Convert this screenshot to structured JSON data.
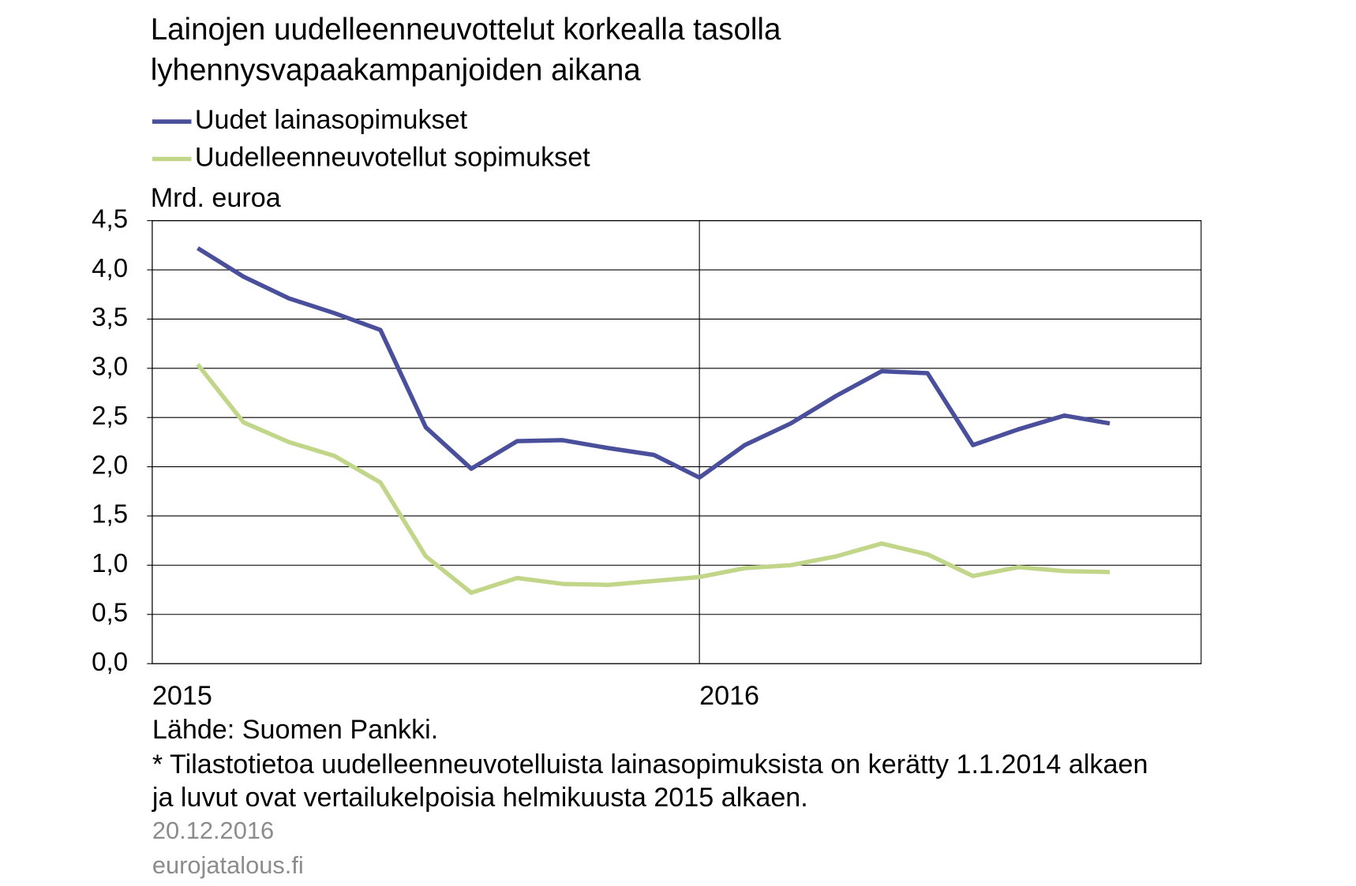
{
  "chart_data": {
    "type": "line",
    "title_lines": [
      "Lainojen uudelleenneuvottelut korkealla tasolla",
      "lyhennysvapaakampanjoiden aikana"
    ],
    "y_label": "Mrd. euroa",
    "x": [
      2015.083,
      2015.167,
      2015.25,
      2015.333,
      2015.417,
      2015.5,
      2015.583,
      2015.667,
      2015.75,
      2015.833,
      2015.917,
      2016,
      2016.083,
      2016.167,
      2016.25,
      2016.333,
      2016.417,
      2016.5,
      2016.583,
      2016.667,
      2016.75
    ],
    "series": [
      {
        "name": "Uudet lainasopimukset",
        "color": "#4a4f9b",
        "values": [
          4.22,
          3.93,
          3.71,
          3.56,
          3.39,
          2.4,
          1.98,
          2.26,
          2.27,
          2.19,
          2.12,
          1.89,
          2.22,
          2.44,
          2.72,
          2.97,
          2.95,
          2.22,
          2.38,
          2.52,
          2.44
        ]
      },
      {
        "name": "Uudelleenneuvotellut sopimukset",
        "color": "#c2d68a",
        "values": [
          3.04,
          2.45,
          2.25,
          2.11,
          1.84,
          1.09,
          0.72,
          0.87,
          0.81,
          0.8,
          0.84,
          0.88,
          0.97,
          1.0,
          1.09,
          1.22,
          1.11,
          0.89,
          0.98,
          0.94,
          0.93
        ]
      }
    ],
    "xlim": [
      2015,
      2016.917
    ],
    "xticks": [
      2015,
      2016
    ],
    "ylim": [
      0,
      4.5
    ],
    "yticks": [
      {
        "value": 0,
        "label": "0,0"
      },
      {
        "value": 0.5,
        "label": "0,5"
      },
      {
        "value": 1,
        "label": "1,0"
      },
      {
        "value": 1.5,
        "label": "1,5"
      },
      {
        "value": 2,
        "label": "2,0"
      },
      {
        "value": 2.5,
        "label": "2,5"
      },
      {
        "value": 3,
        "label": "3,0"
      },
      {
        "value": 3.5,
        "label": "3,5"
      },
      {
        "value": 4,
        "label": "4,0"
      },
      {
        "value": 4.5,
        "label": "4,5"
      }
    ],
    "grid": true,
    "source": "Lähde: Suomen Pankki.",
    "notes": [
      "* Tilastotietoa uudelleenneuvotelluista lainasopimuksista on kerätty 1.1.2014 alkaen",
      "ja luvut ovat vertailukelpoisia helmikuusta 2015 alkaen."
    ],
    "date": "20.12.2016",
    "site": "eurojatalous.fi"
  }
}
